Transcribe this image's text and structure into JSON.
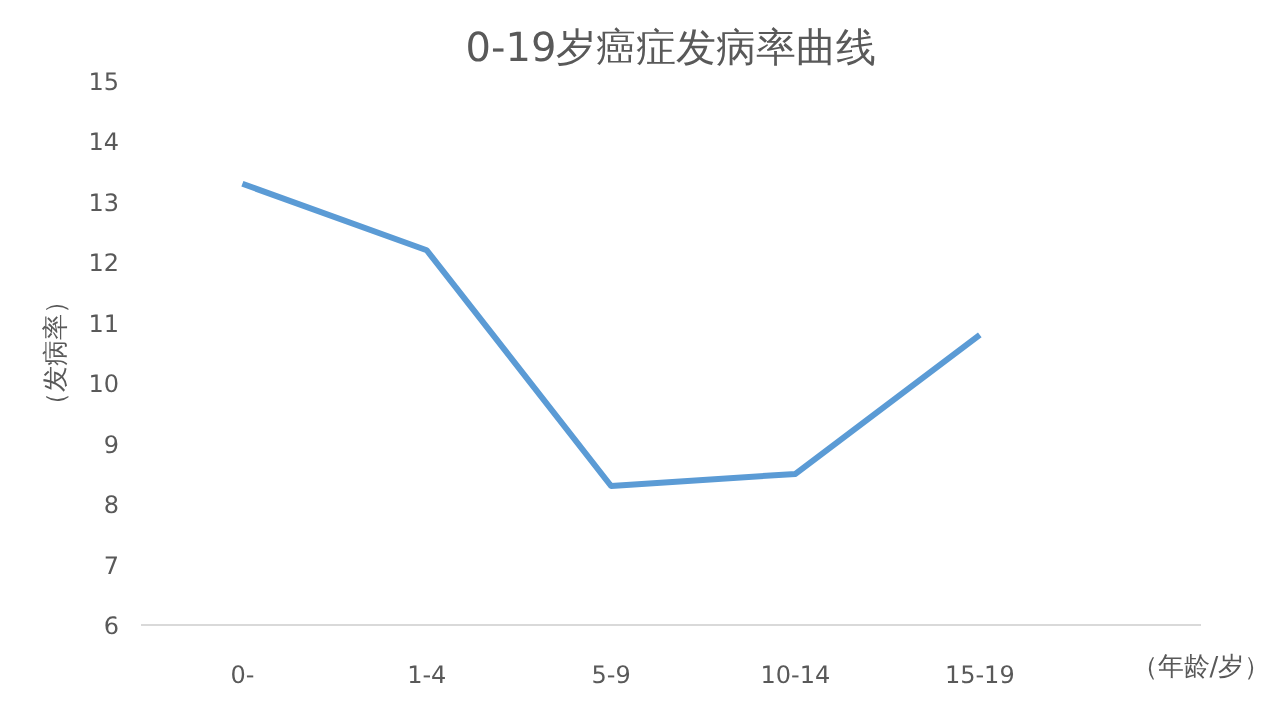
{
  "chart_data": {
    "type": "line",
    "title": "0-19岁癌症发病率曲线",
    "xlabel": "（年龄/岁）",
    "ylabel": "（发病率）",
    "categories": [
      "0-",
      "1-4",
      "5-9",
      "10-14",
      "15-19"
    ],
    "series": [
      {
        "color": "#5b9bd5",
        "values": [
          13.3,
          12.2,
          8.3,
          8.5,
          10.8
        ]
      }
    ],
    "ylim": [
      6,
      15
    ],
    "yticks": [
      6,
      7,
      8,
      9,
      10,
      11,
      12,
      13,
      14,
      15
    ],
    "grid": false,
    "marker": "none",
    "line_style": "solid"
  }
}
